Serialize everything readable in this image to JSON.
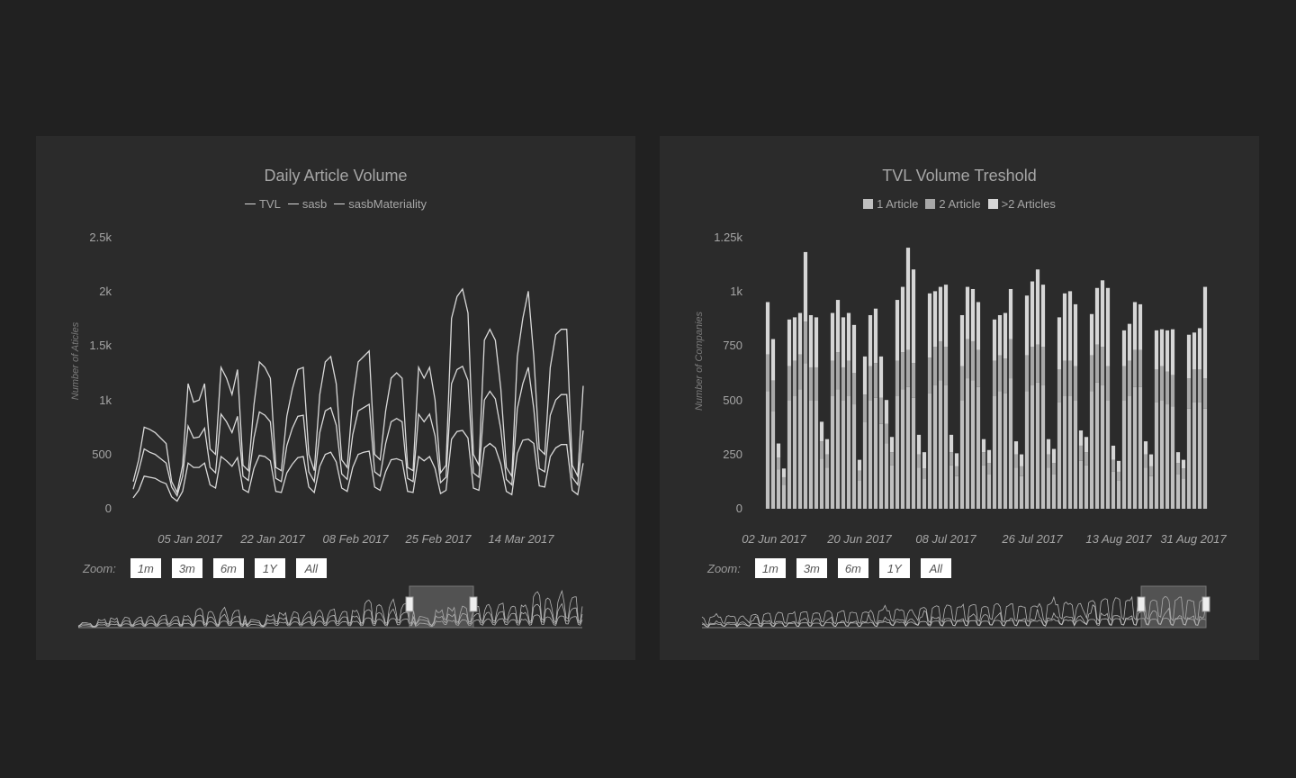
{
  "left_panel": {
    "title": "Daily Article Volume",
    "legend": [
      "TVL",
      "sasb",
      "sasbMateriality"
    ],
    "ylabel": "Number of Aticles",
    "yticks": [
      "0",
      "500",
      "1k",
      "1.5k",
      "2k",
      "2.5k"
    ],
    "xticks": [
      "05 Jan 2017",
      "22 Jan 2017",
      "08 Feb 2017",
      "25 Feb 2017",
      "14 Mar 2017"
    ],
    "zoom_label": "Zoom:",
    "zoom_buttons": [
      "1m",
      "3m",
      "6m",
      "1Y",
      "All"
    ]
  },
  "right_panel": {
    "title": "TVL Volume Treshold",
    "legend": [
      "1 Article",
      "2 Article",
      ">2 Articles"
    ],
    "ylabel": "Number of Companies",
    "yticks": [
      "0",
      "250",
      "500",
      "750",
      "1k",
      "1.25k"
    ],
    "xticks": [
      "02 Jun 2017",
      "20 Jun 2017",
      "08 Jul 2017",
      "26 Jul 2017",
      "13 Aug 2017",
      "31 Aug 2017"
    ],
    "zoom_label": "Zoom:",
    "zoom_buttons": [
      "1m",
      "3m",
      "6m",
      "1Y",
      "All"
    ]
  },
  "colors": {
    "page_bg": "#212121",
    "panel_bg": "#2b2b2b",
    "line": "#d9d9d9",
    "bar_1": "#bfbfbf",
    "bar_2": "#a8a8a8",
    "bar_3": "#d6d6d6"
  },
  "chart_data": [
    {
      "type": "line",
      "title": "Daily Article Volume",
      "ylabel": "Number of Aticles",
      "ylim": [
        0,
        2500
      ],
      "x_start": "2016-12-28",
      "x_step_days": 1,
      "series": [
        {
          "name": "TVL",
          "values": [
            250,
            450,
            750,
            730,
            700,
            650,
            600,
            250,
            150,
            400,
            1150,
            980,
            1000,
            1150,
            550,
            500,
            1300,
            1200,
            1050,
            1280,
            400,
            350,
            950,
            1350,
            1300,
            1200,
            380,
            350,
            850,
            1100,
            1280,
            1300,
            500,
            350,
            1050,
            1350,
            1400,
            1150,
            450,
            380,
            1000,
            1350,
            1400,
            1450,
            500,
            450,
            900,
            1200,
            1250,
            1200,
            380,
            350,
            1300,
            1200,
            1300,
            1000,
            330,
            400,
            1750,
            1950,
            2020,
            1800,
            500,
            400,
            1550,
            1650,
            1550,
            1100,
            380,
            300,
            1400,
            1750,
            2000,
            1400,
            550,
            500,
            1300,
            1600,
            1650,
            1650,
            400,
            300,
            1130
          ]
        },
        {
          "name": "sasb",
          "values": [
            180,
            350,
            550,
            520,
            500,
            460,
            420,
            200,
            120,
            300,
            760,
            650,
            660,
            740,
            380,
            330,
            870,
            800,
            700,
            850,
            300,
            260,
            650,
            890,
            860,
            800,
            280,
            250,
            580,
            740,
            850,
            860,
            340,
            250,
            700,
            900,
            930,
            770,
            320,
            270,
            680,
            900,
            930,
            960,
            340,
            300,
            600,
            800,
            830,
            800,
            280,
            250,
            870,
            800,
            870,
            670,
            240,
            290,
            1150,
            1280,
            1310,
            1180,
            330,
            290,
            1000,
            1080,
            1010,
            730,
            270,
            220,
            920,
            1150,
            1300,
            920,
            370,
            340,
            860,
            1000,
            1050,
            1050,
            290,
            220,
            720
          ]
        },
        {
          "name": "sasbMateriality",
          "values": [
            100,
            170,
            300,
            290,
            280,
            250,
            230,
            110,
            70,
            160,
            420,
            380,
            380,
            420,
            220,
            190,
            480,
            440,
            390,
            470,
            180,
            150,
            370,
            490,
            480,
            440,
            160,
            150,
            330,
            410,
            470,
            480,
            200,
            150,
            390,
            500,
            520,
            430,
            190,
            160,
            380,
            500,
            520,
            530,
            200,
            170,
            340,
            450,
            460,
            440,
            160,
            150,
            480,
            440,
            480,
            370,
            140,
            170,
            640,
            710,
            720,
            650,
            190,
            170,
            560,
            600,
            560,
            410,
            160,
            130,
            510,
            630,
            640,
            600,
            210,
            200,
            480,
            560,
            590,
            590,
            170,
            130,
            420
          ]
        }
      ]
    },
    {
      "type": "bar",
      "title": "TVL Volume Treshold",
      "ylabel": "Number of Companies",
      "ylim": [
        0,
        1250
      ],
      "x_start": "2017-05-31",
      "stacked": true,
      "series": [
        {
          "name": "1 Article",
          "values": [
            540,
            450,
            180,
            110,
            500,
            520,
            550,
            670,
            500,
            500,
            230,
            190,
            520,
            550,
            500,
            520,
            480,
            130,
            400,
            500,
            510,
            390,
            300,
            200,
            520,
            550,
            560,
            510,
            190,
            140,
            530,
            570,
            590,
            570,
            200,
            150,
            500,
            600,
            590,
            560,
            200,
            160,
            520,
            540,
            530,
            600,
            190,
            150,
            540,
            570,
            580,
            570,
            190,
            160,
            490,
            520,
            520,
            500,
            220,
            200,
            540,
            580,
            570,
            500,
            170,
            130,
            500,
            520,
            560,
            560,
            190,
            150,
            490,
            500,
            480,
            470,
            160,
            140,
            460,
            490,
            490,
            460
          ]
        },
        {
          "name": "2 Article",
          "values": [
            170,
            140,
            55,
            35,
            155,
            160,
            160,
            190,
            150,
            150,
            80,
            60,
            160,
            170,
            150,
            160,
            145,
            45,
            125,
            155,
            160,
            120,
            90,
            60,
            160,
            170,
            170,
            160,
            60,
            45,
            165,
            175,
            180,
            175,
            60,
            45,
            155,
            180,
            180,
            170,
            60,
            50,
            160,
            165,
            160,
            180,
            60,
            45,
            165,
            175,
            175,
            175,
            60,
            50,
            150,
            160,
            160,
            155,
            70,
            60,
            165,
            175,
            175,
            155,
            55,
            40,
            155,
            160,
            170,
            170,
            60,
            45,
            150,
            155,
            150,
            145,
            50,
            45,
            140,
            150,
            150,
            140
          ]
        },
        {
          "name": ">2 Articles",
          "values": [
            240,
            190,
            65,
            40,
            215,
            200,
            190,
            320,
            240,
            230,
            90,
            70,
            220,
            240,
            230,
            220,
            220,
            50,
            175,
            235,
            250,
            190,
            110,
            70,
            280,
            300,
            470,
            430,
            90,
            75,
            295,
            255,
            250,
            285,
            80,
            60,
            235,
            240,
            240,
            220,
            60,
            60,
            190,
            185,
            210,
            230,
            60,
            55,
            275,
            300,
            345,
            285,
            70,
            65,
            240,
            310,
            320,
            285,
            70,
            70,
            190,
            260,
            305,
            360,
            65,
            50,
            165,
            170,
            220,
            210,
            60,
            55,
            180,
            170,
            190,
            210,
            50,
            40,
            200,
            170,
            190,
            420
          ]
        }
      ]
    }
  ]
}
